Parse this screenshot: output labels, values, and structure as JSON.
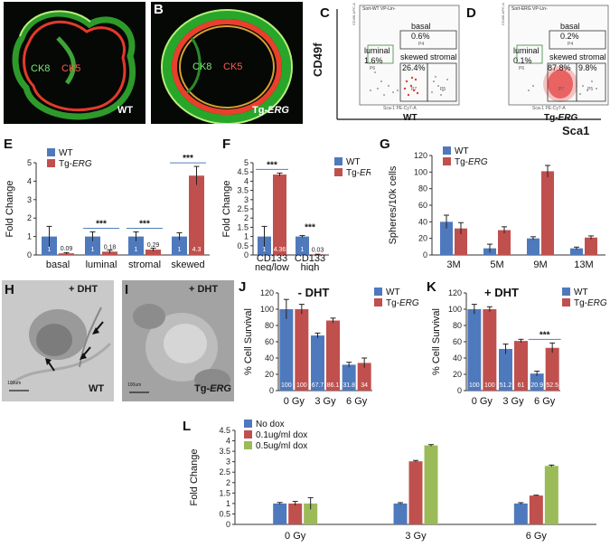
{
  "panels": {
    "A": {
      "letter": "A",
      "stain1": "CK8",
      "stain2": "CK5",
      "genotype": "WT"
    },
    "B": {
      "letter": "B",
      "stain1": "CK8",
      "stain2": "CK5",
      "genotype_prefix": "Tg-",
      "genotype_gene": "ERG"
    },
    "C": {
      "letter": "C",
      "header": "Sort-WT VP-Lin-",
      "genotype": "WT",
      "gates": {
        "basal": "basal",
        "basal_pct": "0.6%",
        "basal_id": "P4",
        "luminal": "luminal",
        "luminal_pct": "1.6%",
        "luminal_id": "P6",
        "skewed": "skewed stromal",
        "skewed_pct": "26.4%",
        "skewed_id": "P7",
        "stromal_id": "P5"
      },
      "yaxis": "CD49f-APC-A",
      "xaxis": "Sca-1 PE-Cy7-A"
    },
    "D": {
      "letter": "D",
      "header": "Sort-ERG VP-Lin-",
      "genotype_prefix": "Tg-",
      "genotype_gene": "ERG",
      "gates": {
        "basal": "basal",
        "basal_pct": "0.2%",
        "basal_id": "P4",
        "luminal": "luminal",
        "luminal_pct": "0.1%",
        "luminal_id": "P6",
        "skewed": "skewed stromal",
        "skewed_pct": "87.8%",
        "stromal_pct": "9.8%",
        "skewed_id": "P7",
        "stromal_id": "P5"
      },
      "yaxis": "CD49f-APC-A",
      "xaxis": "Sca-1 PE-Cy7-A"
    },
    "CD_axes": {
      "y": "CD49f",
      "x": "Sca1"
    },
    "H": {
      "letter": "H",
      "treatment": "+ DHT",
      "genotype": "WT",
      "scale": "100um"
    },
    "I": {
      "letter": "I",
      "treatment": "+ DHT",
      "genotype_prefix": "Tg-",
      "genotype_gene": "ERG",
      "scale": "100um"
    }
  },
  "legend_common": {
    "wt": "WT",
    "tg_prefix": "Tg-",
    "tg_gene": "ERG"
  },
  "colors": {
    "wt": "#4f79bd",
    "tg": "#c0504d",
    "green": "#9bbb59",
    "sig_line": "#4f81bd"
  },
  "chart_data": [
    {
      "id": "E",
      "letter": "E",
      "type": "bar",
      "ylabel": "Fold Change",
      "ylim": [
        0,
        5
      ],
      "yticks": [
        0,
        1,
        2,
        3,
        4,
        5
      ],
      "categories": [
        "basal",
        "luminal",
        "stromal",
        "skewed"
      ],
      "series": [
        {
          "name": "WT",
          "values": [
            1,
            1,
            1,
            1
          ],
          "errors": [
            0.55,
            0.25,
            0.25,
            0.2
          ],
          "labels": [
            "1",
            "1",
            "1",
            "1"
          ]
        },
        {
          "name": "Tg-ERG",
          "values": [
            0.09,
            0.18,
            0.29,
            4.3
          ],
          "errors": [
            0.04,
            0.08,
            0.08,
            0.5
          ],
          "labels": [
            "0.09",
            "0.18",
            "0.29",
            "4.3"
          ]
        }
      ],
      "significance": [
        {
          "category": 1,
          "text": "***"
        },
        {
          "category": 2,
          "text": "***"
        },
        {
          "category": 3,
          "text": "***"
        }
      ],
      "legend": "top-left"
    },
    {
      "id": "F",
      "letter": "F",
      "type": "bar",
      "ylabel": "Fold Change",
      "ylim": [
        0,
        5
      ],
      "yticks": [
        0,
        0.5,
        1,
        1.5,
        2,
        2.5,
        3,
        3.5,
        4,
        4.5,
        5
      ],
      "categories": [
        "CD133 neg/low",
        "CD133 high"
      ],
      "category_lines": [
        [
          "CD133",
          "neg/low"
        ],
        [
          "CD133",
          "high"
        ]
      ],
      "series": [
        {
          "name": "WT",
          "values": [
            1,
            1
          ],
          "errors": [
            0.55,
            0.05
          ],
          "labels": [
            "1",
            "1"
          ]
        },
        {
          "name": "Tg-ERG",
          "values": [
            4.36,
            0.03
          ],
          "errors": [
            0.08,
            0.01
          ],
          "labels": [
            "4.36",
            "0.03"
          ]
        }
      ],
      "significance": [
        {
          "category": 0,
          "text": "***",
          "line": true
        },
        {
          "category": 1,
          "text": "***",
          "line": false
        }
      ],
      "legend": "top-right"
    },
    {
      "id": "G",
      "letter": "G",
      "type": "bar",
      "ylabel": "Spheres/10k cells",
      "ylim": [
        0,
        120
      ],
      "yticks": [
        0,
        20,
        40,
        60,
        80,
        100,
        120
      ],
      "categories": [
        "3M",
        "5M",
        "9M",
        "13M"
      ],
      "series": [
        {
          "name": "WT",
          "values": [
            40,
            8,
            20,
            8
          ],
          "errors": [
            8,
            5,
            2,
            1.5
          ]
        },
        {
          "name": "Tg-ERG",
          "values": [
            32,
            30,
            101,
            21
          ],
          "errors": [
            7,
            4,
            7,
            2
          ]
        }
      ],
      "legend": "top-left"
    },
    {
      "id": "J",
      "letter": "J",
      "type": "bar",
      "ylabel": "% Cell Survival",
      "ylim": [
        0,
        120
      ],
      "yticks": [
        0,
        20,
        40,
        60,
        80,
        100,
        120
      ],
      "title": "- DHT",
      "categories": [
        "0 Gy",
        "3 Gy",
        "6 Gy"
      ],
      "series": [
        {
          "name": "WT",
          "values": [
            100,
            67.7,
            31.8
          ],
          "errors": [
            12,
            3,
            3
          ],
          "labels": [
            "100",
            "67.7",
            "31.8"
          ]
        },
        {
          "name": "Tg-ERG",
          "values": [
            100,
            86.1,
            34
          ],
          "errors": [
            6,
            3,
            6
          ],
          "labels": [
            "100",
            "86.1",
            "34"
          ]
        }
      ],
      "legend": "top-right"
    },
    {
      "id": "K",
      "letter": "K",
      "type": "bar",
      "ylabel": "% Cell Survival",
      "ylim": [
        0,
        120
      ],
      "yticks": [
        0,
        20,
        40,
        60,
        80,
        100,
        120
      ],
      "title": "+ DHT",
      "categories": [
        "0 Gy",
        "3 Gy",
        "6 Gy"
      ],
      "series": [
        {
          "name": "WT",
          "values": [
            100,
            51.2,
            20.9
          ],
          "errors": [
            6,
            6,
            3
          ],
          "labels": [
            "100",
            "51.2",
            "20.9"
          ]
        },
        {
          "name": "Tg-ERG",
          "values": [
            100,
            61,
            52.5
          ],
          "errors": [
            3,
            2,
            6
          ],
          "labels": [
            "100",
            "61",
            "52.5"
          ]
        }
      ],
      "significance": [
        {
          "category": 2,
          "text": "***"
        }
      ],
      "legend": "top-right"
    },
    {
      "id": "L",
      "letter": "L",
      "type": "bar",
      "ylabel": "Fold Change",
      "ylim": [
        0,
        4.5
      ],
      "yticks": [
        0,
        0.5,
        1,
        1.5,
        2,
        2.5,
        3,
        3.5,
        4,
        4.5
      ],
      "categories": [
        "0 Gy",
        "3 Gy",
        "6 Gy"
      ],
      "series": [
        {
          "name": "No dox",
          "values": [
            1,
            1,
            1
          ],
          "errors": [
            0.05,
            0.04,
            0.04
          ]
        },
        {
          "name": "0.1ug/ml dox",
          "values": [
            1,
            3.02,
            1.38
          ],
          "errors": [
            0.1,
            0.04,
            0.02
          ]
        },
        {
          "name": "0.5ug/ml dox",
          "values": [
            1,
            3.78,
            2.8
          ],
          "errors": [
            0.28,
            0.04,
            0.04
          ]
        }
      ],
      "legend": "top-left"
    }
  ]
}
